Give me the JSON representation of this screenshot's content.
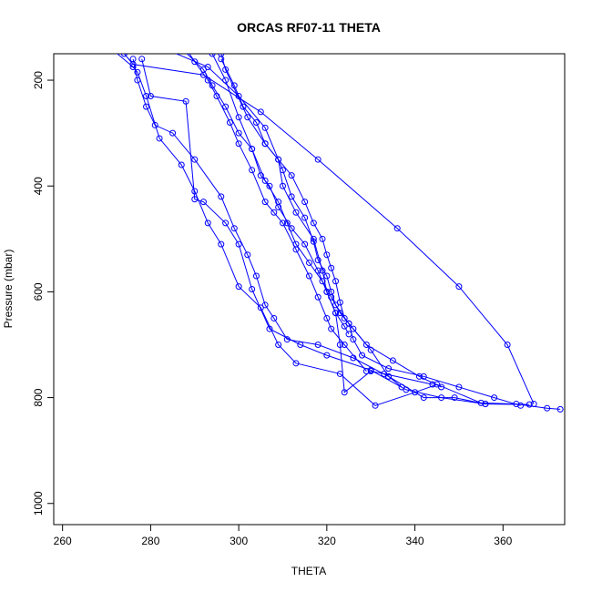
{
  "chart_data": {
    "type": "line",
    "title": "ORCAS RF07-11 THETA",
    "xlabel": "THETA",
    "ylabel": "Pressure (mbar)",
    "xlim": [
      258,
      374
    ],
    "ylim": [
      1040,
      150
    ],
    "y_reversed": true,
    "x_ticks": [
      260,
      280,
      300,
      320,
      340,
      360
    ],
    "y_ticks": [
      200,
      400,
      600,
      800,
      1000
    ],
    "grid": false,
    "legend": "none",
    "line_color": "#0000ff",
    "marker": "open-circle",
    "series": [
      {
        "points": [
          [
            271,
            140
          ],
          [
            276,
            175
          ],
          [
            277,
            185
          ],
          [
            279,
            230
          ],
          [
            282,
            310
          ],
          [
            287,
            360
          ],
          [
            290,
            410
          ],
          [
            293,
            470
          ],
          [
            296,
            510
          ],
          [
            300,
            590
          ],
          [
            305,
            630
          ],
          [
            309,
            700
          ],
          [
            313,
            735
          ],
          [
            323,
            755
          ],
          [
            331,
            815
          ],
          [
            340,
            790
          ],
          [
            345,
            775
          ],
          [
            355,
            810
          ],
          [
            363,
            812
          ],
          [
            370,
            820
          ],
          [
            373,
            822
          ]
        ]
      },
      {
        "points": [
          [
            276,
            160
          ],
          [
            277,
            200
          ],
          [
            279,
            250
          ],
          [
            281,
            285
          ],
          [
            285,
            300
          ],
          [
            290,
            350
          ],
          [
            296,
            420
          ],
          [
            299,
            480
          ],
          [
            302,
            530
          ],
          [
            304,
            570
          ],
          [
            306,
            625
          ],
          [
            308,
            650
          ],
          [
            311,
            690
          ],
          [
            318,
            700
          ],
          [
            326,
            725
          ],
          [
            334,
            760
          ],
          [
            342,
            800
          ],
          [
            349,
            800
          ],
          [
            356,
            812
          ],
          [
            366,
            813
          ]
        ]
      },
      {
        "points": [
          [
            278,
            160
          ],
          [
            280,
            230
          ],
          [
            288,
            240
          ],
          [
            290,
            425
          ],
          [
            292,
            430
          ],
          [
            297,
            470
          ],
          [
            300,
            510
          ],
          [
            303,
            595
          ],
          [
            307,
            670
          ],
          [
            314,
            700
          ],
          [
            320,
            720
          ],
          [
            330,
            748
          ],
          [
            338,
            785
          ],
          [
            346,
            800
          ],
          [
            356,
            812
          ]
        ]
      },
      {
        "points": [
          [
            287,
            140
          ],
          [
            292,
            180
          ],
          [
            294,
            210
          ],
          [
            297,
            250
          ],
          [
            300,
            300
          ],
          [
            303,
            330
          ],
          [
            306,
            390
          ],
          [
            309,
            430
          ],
          [
            311,
            470
          ],
          [
            313,
            510
          ],
          [
            316,
            545
          ],
          [
            319,
            580
          ],
          [
            321,
            610
          ],
          [
            323,
            640
          ],
          [
            325,
            660
          ],
          [
            326,
            690
          ],
          [
            328,
            720
          ],
          [
            334,
            745
          ],
          [
            342,
            760
          ],
          [
            350,
            780
          ],
          [
            358,
            800
          ],
          [
            364,
            815
          ]
        ]
      },
      {
        "points": [
          [
            294,
            150
          ],
          [
            297,
            200
          ],
          [
            300,
            270
          ],
          [
            303,
            330
          ],
          [
            305,
            380
          ],
          [
            307,
            400
          ],
          [
            309,
            440
          ],
          [
            312,
            480
          ],
          [
            315,
            510
          ],
          [
            318,
            560
          ],
          [
            320,
            600
          ],
          [
            322,
            640
          ],
          [
            324,
            665
          ],
          [
            325,
            680
          ]
        ]
      },
      {
        "points": [
          [
            296,
            160
          ],
          [
            299,
            210
          ],
          [
            301,
            250
          ],
          [
            304,
            280
          ],
          [
            306,
            320
          ],
          [
            309,
            350
          ],
          [
            312,
            380
          ],
          [
            315,
            430
          ],
          [
            317,
            470
          ],
          [
            319,
            500
          ],
          [
            320,
            530
          ],
          [
            321,
            555
          ],
          [
            322,
            580
          ],
          [
            323,
            620
          ],
          [
            324,
            650
          ],
          [
            326,
            670
          ],
          [
            329,
            700
          ],
          [
            335,
            730
          ],
          [
            341,
            760
          ],
          [
            346,
            780
          ]
        ]
      },
      {
        "points": [
          [
            283,
            140
          ],
          [
            293,
            175
          ],
          [
            300,
            230
          ],
          [
            306,
            290
          ],
          [
            310,
            370
          ],
          [
            312,
            420
          ],
          [
            315,
            460
          ],
          [
            317,
            505
          ],
          [
            318,
            540
          ],
          [
            320,
            570
          ],
          [
            321,
            600
          ],
          [
            322,
            625
          ],
          [
            325,
            660
          ],
          [
            330,
            710
          ],
          [
            334,
            760
          ],
          [
            337,
            780
          ]
        ]
      },
      {
        "points": [
          [
            274,
            150
          ],
          [
            276,
            170
          ],
          [
            292,
            190
          ],
          [
            305,
            260
          ],
          [
            318,
            350
          ],
          [
            336,
            480
          ],
          [
            350,
            590
          ],
          [
            361,
            700
          ],
          [
            367,
            812
          ]
        ]
      },
      {
        "points": [
          [
            296,
            150
          ],
          [
            297,
            180
          ],
          [
            302,
            270
          ],
          [
            306,
            320
          ],
          [
            309,
            350
          ],
          [
            310,
            400
          ],
          [
            313,
            450
          ],
          [
            317,
            500
          ],
          [
            319,
            560
          ],
          [
            320,
            600
          ],
          [
            322,
            640
          ],
          [
            323,
            700
          ],
          [
            324,
            790
          ],
          [
            330,
            750
          ],
          [
            333,
            755
          ],
          [
            344,
            775
          ]
        ]
      },
      {
        "points": [
          [
            288,
            140
          ],
          [
            290,
            165
          ],
          [
            293,
            200
          ],
          [
            295,
            230
          ],
          [
            298,
            280
          ],
          [
            300,
            320
          ],
          [
            303,
            370
          ],
          [
            306,
            430
          ],
          [
            308,
            450
          ],
          [
            310,
            470
          ],
          [
            313,
            520
          ],
          [
            316,
            570
          ],
          [
            318,
            610
          ],
          [
            320,
            650
          ],
          [
            321,
            670
          ],
          [
            324,
            700
          ],
          [
            329,
            750
          ]
        ]
      }
    ]
  }
}
